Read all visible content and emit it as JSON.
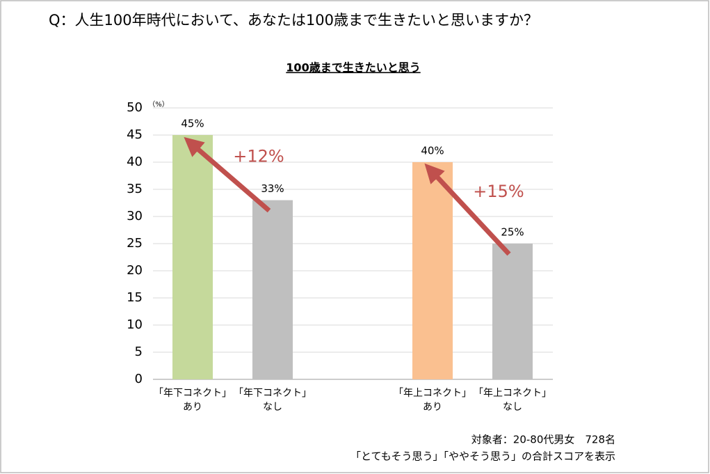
{
  "chart_data": {
    "type": "bar",
    "title": "Q：人生100年時代において、あなたは100歳まで生きたいと思いますか？",
    "subtitle": "100歳まで生きたいと思う",
    "y_unit": "（%）",
    "categories": [
      [
        "「年下コネクト」",
        "あり"
      ],
      [
        "「年下コネクト」",
        "なし"
      ],
      null,
      [
        "「年上コネクト」",
        "あり"
      ],
      [
        "「年上コネクト」",
        "なし"
      ]
    ],
    "values": [
      45,
      33,
      null,
      40,
      25
    ],
    "value_labels": [
      "45%",
      "33%",
      null,
      "40%",
      "25%"
    ],
    "colors": [
      "#c5d99b",
      "#bfbfbf",
      null,
      "#fac090",
      "#bfbfbf"
    ],
    "ylim": [
      0,
      50
    ],
    "yticks": [
      0,
      5,
      10,
      15,
      20,
      25,
      30,
      35,
      40,
      45,
      50
    ],
    "grid": true,
    "annotations": [
      {
        "text": "+12%",
        "from": 1,
        "to": 0,
        "color": "#c0504d"
      },
      {
        "text": "+15%",
        "from": 4,
        "to": 3,
        "color": "#c0504d"
      }
    ],
    "notes": [
      "対象者：20-80代男女　728名",
      "「とてもそう思う」「ややそう思う」の合計スコアを表示"
    ]
  }
}
